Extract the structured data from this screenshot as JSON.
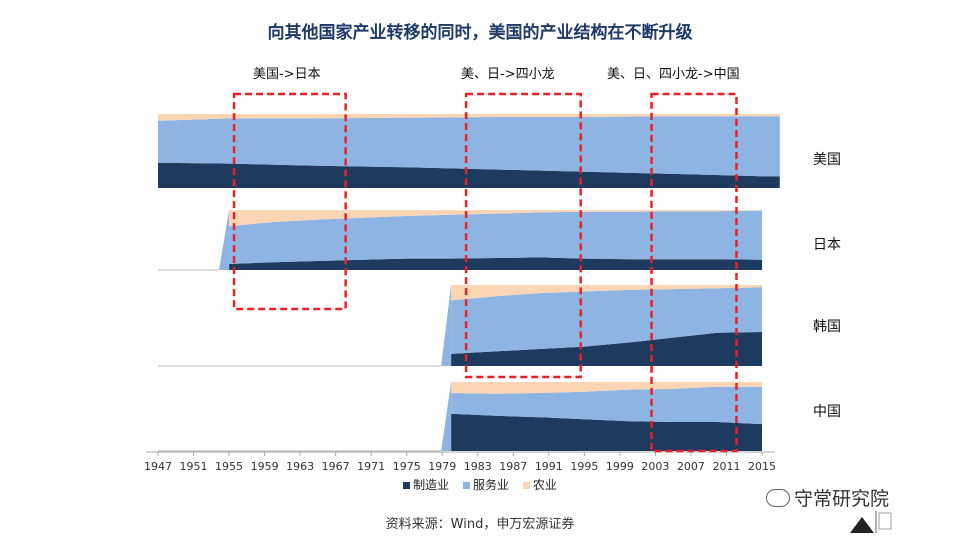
{
  "title": "向其他国家产业转移的同时，美国的产业结构在不断升级",
  "era_labels": [
    {
      "text": "美国->日本"
    },
    {
      "text": "美、日->四小龙"
    },
    {
      "text": "美、日、四小龙->中国"
    }
  ],
  "source": "资料来源：Wind，申万宏源证券",
  "brand": {
    "name": "守常研究院"
  },
  "colors": {
    "manufacturing": "#1f3a5f",
    "services": "#8eb4e3",
    "agriculture": "#fcd5b4",
    "highlight": "#e8202a"
  },
  "chart_data": {
    "type": "area",
    "stacked": true,
    "normalized": true,
    "x_ticks": [
      "1947",
      "1951",
      "1955",
      "1959",
      "1963",
      "1967",
      "1971",
      "1975",
      "1979",
      "1983",
      "1987",
      "1991",
      "1995",
      "1999",
      "2003",
      "2007",
      "2011",
      "2015"
    ],
    "legend": [
      {
        "name": "制造业",
        "color": "#1f3a5f"
      },
      {
        "name": "服务业",
        "color": "#8eb4e3"
      },
      {
        "name": "农业",
        "color": "#fcd5b4"
      }
    ],
    "highlight_periods": [
      [
        1955,
        1967
      ],
      [
        1980,
        1992
      ],
      [
        2002,
        2011
      ]
    ],
    "panels": [
      {
        "country": "美国",
        "x": [
          1947,
          1955,
          1965,
          1975,
          1985,
          1995,
          2005,
          2015,
          2017
        ],
        "manufacturing": [
          0.34,
          0.33,
          0.3,
          0.28,
          0.25,
          0.22,
          0.19,
          0.16,
          0.16
        ],
        "services": [
          0.57,
          0.61,
          0.64,
          0.67,
          0.71,
          0.74,
          0.78,
          0.81,
          0.81
        ],
        "agriculture": [
          0.09,
          0.06,
          0.06,
          0.05,
          0.04,
          0.04,
          0.03,
          0.03,
          0.03
        ]
      },
      {
        "country": "日本",
        "x": [
          1955,
          1960,
          1965,
          1970,
          1975,
          1980,
          1985,
          1990,
          1995,
          2000,
          2005,
          2010,
          2015
        ],
        "manufacturing": [
          0.1,
          0.13,
          0.15,
          0.17,
          0.19,
          0.19,
          0.2,
          0.21,
          0.19,
          0.18,
          0.18,
          0.18,
          0.17
        ],
        "services": [
          0.63,
          0.67,
          0.69,
          0.7,
          0.71,
          0.73,
          0.74,
          0.75,
          0.78,
          0.79,
          0.8,
          0.8,
          0.82
        ],
        "agriculture": [
          0.27,
          0.2,
          0.16,
          0.13,
          0.1,
          0.08,
          0.06,
          0.04,
          0.03,
          0.03,
          0.02,
          0.02,
          0.01
        ]
      },
      {
        "country": "韩国",
        "x": [
          1980,
          1985,
          1990,
          1995,
          2000,
          2005,
          2010,
          2015
        ],
        "manufacturing": [
          0.15,
          0.18,
          0.21,
          0.24,
          0.29,
          0.35,
          0.41,
          0.42
        ],
        "services": [
          0.66,
          0.68,
          0.69,
          0.68,
          0.65,
          0.6,
          0.55,
          0.55
        ],
        "agriculture": [
          0.19,
          0.14,
          0.1,
          0.08,
          0.06,
          0.05,
          0.04,
          0.03
        ]
      },
      {
        "country": "中国",
        "x": [
          1980,
          1985,
          1990,
          1995,
          2000,
          2005,
          2010,
          2015
        ],
        "manufacturing": [
          0.54,
          0.51,
          0.49,
          0.46,
          0.43,
          0.42,
          0.42,
          0.39
        ],
        "services": [
          0.3,
          0.32,
          0.35,
          0.4,
          0.46,
          0.48,
          0.51,
          0.54
        ],
        "agriculture": [
          0.16,
          0.17,
          0.16,
          0.14,
          0.11,
          0.1,
          0.07,
          0.07
        ]
      }
    ]
  }
}
